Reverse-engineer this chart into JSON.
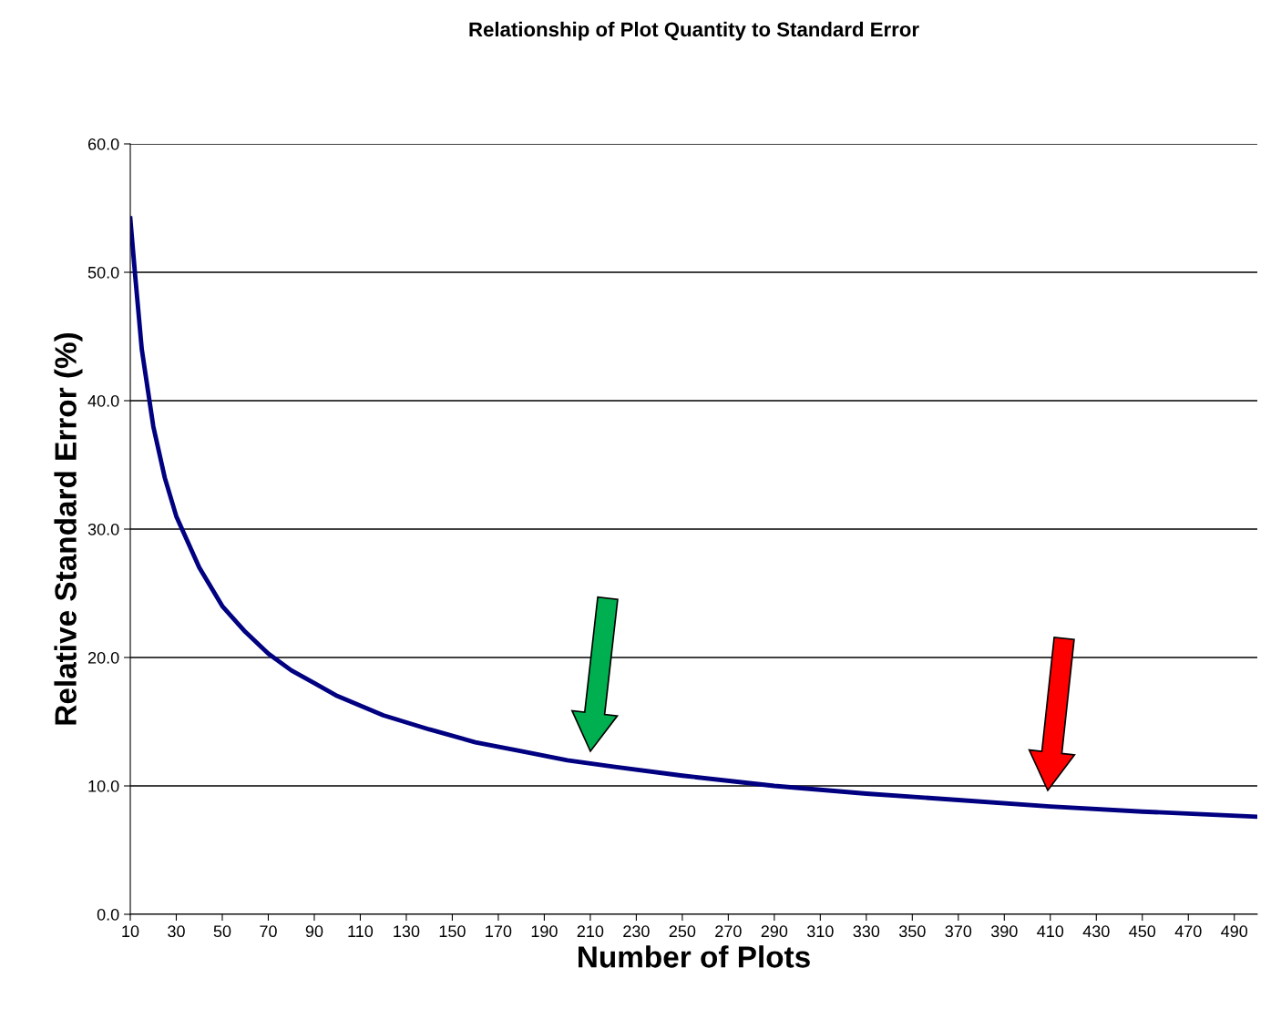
{
  "chart_data": {
    "type": "line",
    "title": "Relationship of Plot Quantity to Standard Error",
    "xlabel": "Number of Plots",
    "ylabel": "Relative Standard Error (%)",
    "x": [
      10,
      12,
      15,
      20,
      25,
      30,
      40,
      50,
      60,
      70,
      80,
      90,
      100,
      120,
      140,
      160,
      180,
      200,
      220,
      250,
      290,
      330,
      370,
      410,
      450,
      500
    ],
    "series": [
      {
        "color": "#000080",
        "values": [
          54.2,
          50,
          44,
          38,
          34,
          31,
          27,
          24,
          22,
          20.3,
          19,
          18,
          17,
          15.5,
          14.4,
          13.4,
          12.7,
          12.0,
          11.5,
          10.8,
          10.0,
          9.4,
          8.9,
          8.4,
          8.0,
          7.6
        ]
      }
    ],
    "xlim": [
      10,
      500
    ],
    "xticks": [
      10,
      30,
      50,
      70,
      90,
      110,
      130,
      150,
      170,
      190,
      210,
      230,
      250,
      270,
      290,
      310,
      330,
      350,
      370,
      390,
      410,
      430,
      450,
      470,
      490
    ],
    "ylim": [
      0,
      60
    ],
    "yticks": [
      {
        "value": 0,
        "label": "0.0"
      },
      {
        "value": 10,
        "label": "10.0"
      },
      {
        "value": 20,
        "label": "20.0"
      },
      {
        "value": 30,
        "label": "30.0"
      },
      {
        "value": 40,
        "label": "40.0"
      },
      {
        "value": 50,
        "label": "50.0"
      },
      {
        "value": 60,
        "label": "60.0"
      }
    ],
    "grid": "y",
    "marker": "none",
    "line_style": "solid"
  }
}
